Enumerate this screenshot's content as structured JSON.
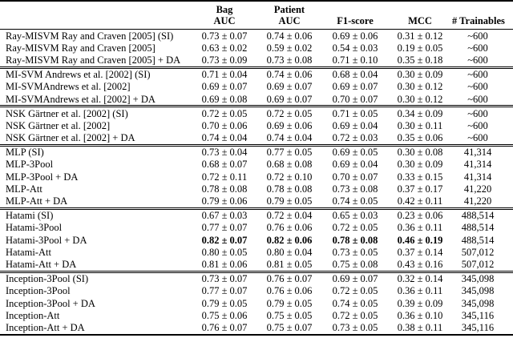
{
  "table": {
    "columns": [
      {
        "line1": "",
        "line2": ""
      },
      {
        "line1": "Bag",
        "line2": "AUC"
      },
      {
        "line1": "Patient",
        "line2": "AUC"
      },
      {
        "line1": "",
        "line2": "F1-score"
      },
      {
        "line1": "",
        "line2": "MCC"
      },
      {
        "line1": "",
        "line2": "# Trainables"
      }
    ],
    "groups": [
      {
        "rows": [
          {
            "name": "Ray-MISVM Ray and Craven [2005] (SI)",
            "bag": "0.73 ± 0.07",
            "patient": "0.74 ± 0.06",
            "f1": "0.69 ± 0.06",
            "mcc": "0.31 ± 0.12",
            "trainables": "~600",
            "bold_metrics": false
          },
          {
            "name": "Ray-MISVM Ray and Craven [2005]",
            "bag": "0.63 ± 0.02",
            "patient": "0.59 ± 0.02",
            "f1": "0.54 ± 0.03",
            "mcc": "0.19 ± 0.05",
            "trainables": "~600",
            "bold_metrics": false
          },
          {
            "name": "Ray-MISVM Ray and Craven [2005] + DA",
            "bag": "0.73 ± 0.09",
            "patient": "0.73 ± 0.08",
            "f1": "0.71 ± 0.10",
            "mcc": "0.35 ± 0.18",
            "trainables": "~600",
            "bold_metrics": false
          }
        ]
      },
      {
        "rows": [
          {
            "name": "MI-SVM Andrews et al. [2002] (SI)",
            "bag": "0.71 ± 0.04",
            "patient": "0.74 ± 0.06",
            "f1": "0.68 ± 0.04",
            "mcc": "0.30 ± 0.09",
            "trainables": "~600",
            "bold_metrics": false
          },
          {
            "name": "MI-SVMAndrews et al. [2002]",
            "bag": "0.69 ± 0.07",
            "patient": "0.69 ± 0.07",
            "f1": "0.69 ± 0.07",
            "mcc": "0.30 ± 0.12",
            "trainables": "~600",
            "bold_metrics": false
          },
          {
            "name": "MI-SVMAndrews et al. [2002] + DA",
            "bag": "0.69 ± 0.08",
            "patient": "0.69 ± 0.07",
            "f1": "0.70 ± 0.07",
            "mcc": "0.30 ± 0.12",
            "trainables": "~600",
            "bold_metrics": false
          }
        ]
      },
      {
        "rows": [
          {
            "name": "NSK Gärtner et al. [2002] (SI)",
            "bag": "0.72 ± 0.05",
            "patient": "0.72 ± 0.05",
            "f1": "0.71 ± 0.05",
            "mcc": "0.34 ± 0.09",
            "trainables": "~600",
            "bold_metrics": false
          },
          {
            "name": "NSK Gärtner et al. [2002]",
            "bag": "0.70 ± 0.06",
            "patient": "0.69 ± 0.06",
            "f1": "0.69 ± 0.04",
            "mcc": "0.30 ± 0.11",
            "trainables": "~600",
            "bold_metrics": false
          },
          {
            "name": "NSK Gärtner et al. [2002] + DA",
            "bag": "0.74 ± 0.04",
            "patient": "0.74 ± 0.04",
            "f1": "0.72 ± 0.03",
            "mcc": "0.35 ± 0.06",
            "trainables": "~600",
            "bold_metrics": false
          }
        ]
      },
      {
        "rows": [
          {
            "name": "MLP (SI)",
            "bag": "0.73 ± 0.04",
            "patient": "0.77 ± 0.05",
            "f1": "0.69 ± 0.05",
            "mcc": "0.30 ± 0.08",
            "trainables": "41,314",
            "bold_metrics": false
          },
          {
            "name": "MLP-3Pool",
            "bag": "0.68 ± 0.07",
            "patient": "0.68 ± 0.08",
            "f1": "0.69 ± 0.04",
            "mcc": "0.30 ± 0.09",
            "trainables": "41,314",
            "bold_metrics": false
          },
          {
            "name": "MLP-3Pool + DA",
            "bag": "0.72 ± 0.11",
            "patient": "0.72 ± 0.10",
            "f1": "0.70 ± 0.07",
            "mcc": "0.33 ± 0.15",
            "trainables": "41,314",
            "bold_metrics": false
          },
          {
            "name": "MLP-Att",
            "bag": "0.78 ± 0.08",
            "patient": "0.78 ± 0.08",
            "f1": "0.73 ± 0.08",
            "mcc": "0.37 ± 0.17",
            "trainables": "41,220",
            "bold_metrics": false
          },
          {
            "name": "MLP-Att + DA",
            "bag": "0.79 ± 0.06",
            "patient": "0.79 ± 0.05",
            "f1": "0.74 ± 0.05",
            "mcc": "0.42 ± 0.11",
            "trainables": "41,220",
            "bold_metrics": false
          }
        ]
      },
      {
        "rows": [
          {
            "name": "Hatami (SI)",
            "bag": "0.67 ± 0.03",
            "patient": "0.72 ± 0.04",
            "f1": "0.65 ± 0.03",
            "mcc": "0.23 ± 0.06",
            "trainables": "488,514",
            "bold_metrics": false
          },
          {
            "name": "Hatami-3Pool",
            "bag": "0.77 ± 0.07",
            "patient": "0.76 ± 0.06",
            "f1": "0.72 ± 0.05",
            "mcc": "0.36 ± 0.11",
            "trainables": "488,514",
            "bold_metrics": false
          },
          {
            "name": "Hatami-3Pool + DA",
            "bag": "0.82 ± 0.07",
            "patient": "0.82 ± 0.06",
            "f1": "0.78 ± 0.08",
            "mcc": "0.46 ± 0.19",
            "trainables": "488,514",
            "bold_metrics": true
          },
          {
            "name": "Hatami-Att",
            "bag": "0.80 ± 0.05",
            "patient": "0.80 ± 0.04",
            "f1": "0.73 ± 0.05",
            "mcc": "0.37 ± 0.14",
            "trainables": "507,012",
            "bold_metrics": false
          },
          {
            "name": "Hatami-Att + DA",
            "bag": "0.81 ± 0.06",
            "patient": "0.81 ± 0.05",
            "f1": "0.75 ± 0.08",
            "mcc": "0.43 ± 0.16",
            "trainables": "507,012",
            "bold_metrics": false
          }
        ]
      },
      {
        "rows": [
          {
            "name": "Inception-3Pool (SI)",
            "bag": "0.73 ± 0.07",
            "patient": "0.76 ± 0.07",
            "f1": "0.69 ± 0.07",
            "mcc": "0.32 ± 0.14",
            "trainables": "345,098",
            "bold_metrics": false
          },
          {
            "name": "Inception-3Pool",
            "bag": "0.77 ± 0.07",
            "patient": "0.76 ± 0.06",
            "f1": "0.72 ± 0.05",
            "mcc": "0.36 ± 0.11",
            "trainables": "345,098",
            "bold_metrics": false
          },
          {
            "name": "Inception-3Pool + DA",
            "bag": "0.79 ± 0.05",
            "patient": "0.79 ± 0.05",
            "f1": "0.74 ± 0.05",
            "mcc": "0.39 ± 0.09",
            "trainables": "345,098",
            "bold_metrics": false
          },
          {
            "name": "Inception-Att",
            "bag": "0.75 ± 0.06",
            "patient": "0.75 ± 0.05",
            "f1": "0.72 ± 0.05",
            "mcc": "0.36 ± 0.10",
            "trainables": "345,116",
            "bold_metrics": false
          },
          {
            "name": "Inception-Att + DA",
            "bag": "0.76 ± 0.07",
            "patient": "0.75 ± 0.07",
            "f1": "0.73 ± 0.05",
            "mcc": "0.38 ± 0.11",
            "trainables": "345,116",
            "bold_metrics": false
          }
        ]
      }
    ]
  }
}
